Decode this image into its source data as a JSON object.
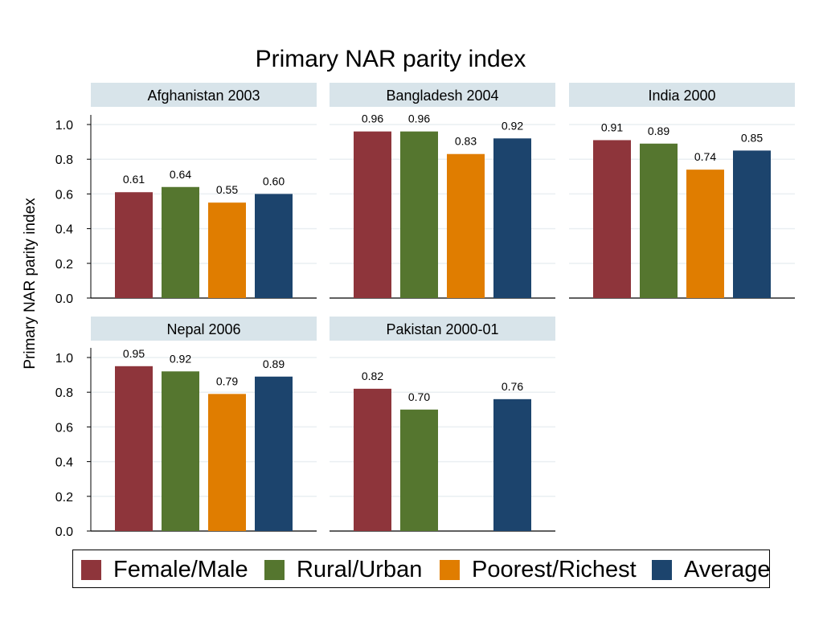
{
  "chart_data": {
    "type": "bar",
    "title": "Primary NAR parity index",
    "ylabel": "Primary NAR parity index",
    "ylim": [
      0,
      1.0
    ],
    "yticks": [
      "0.0",
      "0.2",
      "0.4",
      "0.6",
      "0.8",
      "1.0"
    ],
    "ytick_values": [
      0,
      0.2,
      0.4,
      0.6,
      0.8,
      1.0
    ],
    "grid": true,
    "legend_position": "bottom",
    "series": [
      {
        "name": "Female/Male",
        "color": "#8e353b"
      },
      {
        "name": "Rural/Urban",
        "color": "#55762f"
      },
      {
        "name": "Poorest/Richest",
        "color": "#e07d00"
      },
      {
        "name": "Average",
        "color": "#1c446d"
      }
    ],
    "panels": [
      {
        "label": "Afghanistan 2003",
        "values": [
          0.61,
          0.64,
          0.55,
          0.6
        ],
        "labels": [
          "0.61",
          "0.64",
          "0.55",
          "0.60"
        ]
      },
      {
        "label": "Bangladesh 2004",
        "values": [
          0.96,
          0.96,
          0.83,
          0.92
        ],
        "labels": [
          "0.96",
          "0.96",
          "0.83",
          "0.92"
        ]
      },
      {
        "label": "India 2000",
        "values": [
          0.91,
          0.89,
          0.74,
          0.85
        ],
        "labels": [
          "0.91",
          "0.89",
          "0.74",
          "0.85"
        ]
      },
      {
        "label": "Nepal 2006",
        "values": [
          0.95,
          0.92,
          0.79,
          0.89
        ],
        "labels": [
          "0.95",
          "0.92",
          "0.79",
          "0.89"
        ]
      },
      {
        "label": "Pakistan 2000-01",
        "values": [
          0.82,
          0.7,
          null,
          0.76
        ],
        "labels": [
          "0.82",
          "0.70",
          null,
          "0.76"
        ]
      }
    ]
  },
  "colors": {
    "panel_header_bg": "#d8e4ea",
    "grid": "#eaeff2"
  }
}
